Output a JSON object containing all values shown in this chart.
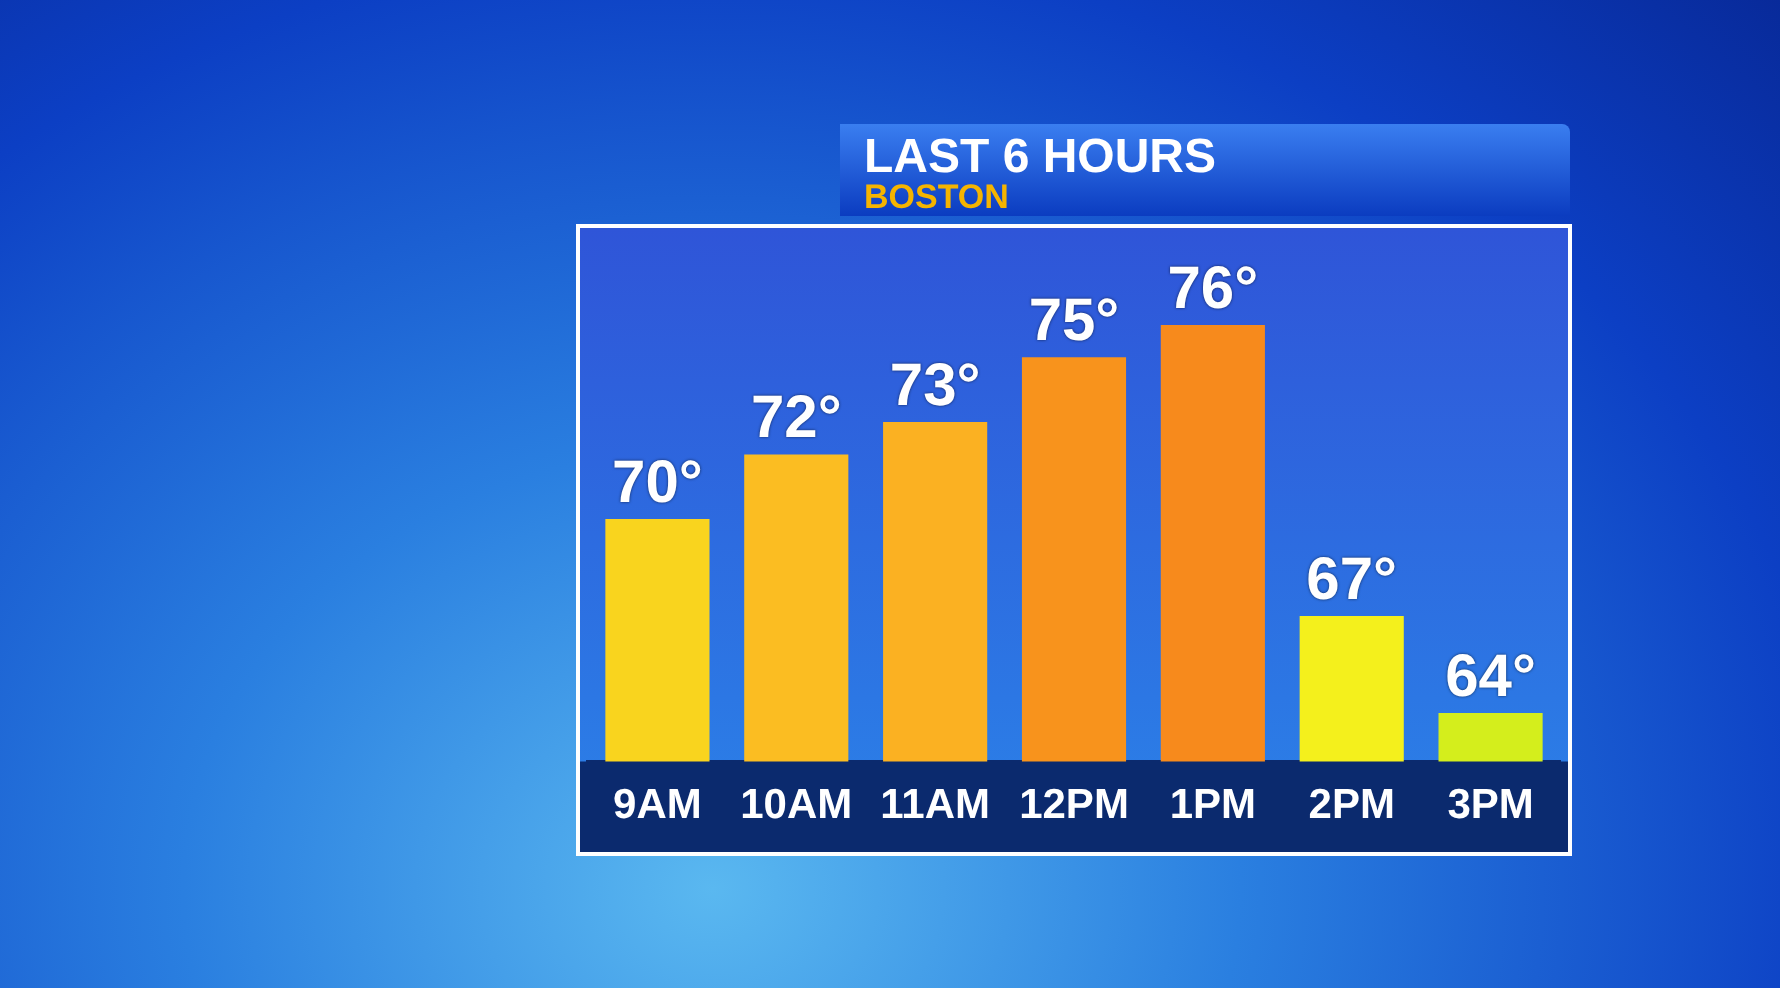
{
  "chart_data": {
    "type": "bar",
    "title": "LAST 6 HOURS",
    "subtitle": "BOSTON",
    "categories": [
      "9AM",
      "10AM",
      "11AM",
      "12PM",
      "1PM",
      "2PM",
      "3PM"
    ],
    "values": [
      70,
      72,
      73,
      75,
      76,
      67,
      64
    ],
    "colors": [
      "#f9d41e",
      "#fbbd22",
      "#fbb122",
      "#f8931c",
      "#f78a1c",
      "#f4f01c",
      "#d4ee1c"
    ],
    "value_labels": [
      "70°",
      "72°",
      "73°",
      "75°",
      "76°",
      "67°",
      "64°"
    ],
    "ylim": [
      62.5,
      79
    ],
    "tick_labels": "x",
    "grid": false,
    "legend": false
  }
}
